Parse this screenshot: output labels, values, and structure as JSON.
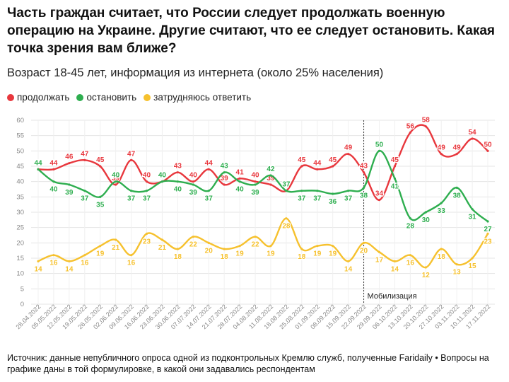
{
  "title": "Часть граждан считает, что России следует продолжать военную операцию на Украине. Другие считают, что ее следует остановить. Какая точка зрения вам ближе?",
  "subtitle": "Возраст 18-45 лет, информация из интернета (около 25% населения)",
  "source": "Источник: данные непубличного опроса одной из подконтрольных Кремлю служб, полученные Faridaily • Вопросы на графике даны в той формулировке, в какой они задавались респондентам",
  "chart_data": {
    "type": "line",
    "ylim": [
      0,
      60
    ],
    "yticks": [
      0,
      5,
      10,
      15,
      20,
      25,
      30,
      35,
      40,
      45,
      50,
      55,
      60
    ],
    "grid": true,
    "legend_placement": "top-left",
    "x": [
      "28.04.2022",
      "05.05.2022",
      "12.05.2022",
      "19.05.2022",
      "26.05.2022",
      "02.06.2022",
      "09.06.2022",
      "16.06.2022",
      "23.06.2022",
      "30.06.2022",
      "07.07.2022",
      "14.07.2022",
      "21.07.2022",
      "28.07.2022",
      "04.08.2022",
      "11.08.2022",
      "18.08.2022",
      "25.08.2022",
      "01.09.2022",
      "08.09.2022",
      "15.09.2022",
      "22.09.2022",
      "29.09.2022",
      "06.10.2022",
      "13.10.2022",
      "20.10.2022",
      "27.10.2022",
      "03.11.2022",
      "10.11.2022",
      "17.11.2022"
    ],
    "series": [
      {
        "name": "продолжать",
        "color": "#e8373d",
        "values": [
          44,
          44,
          46,
          47,
          45,
          39,
          47,
          40,
          40,
          43,
          40,
          44,
          39,
          41,
          40,
          39,
          37,
          45,
          44,
          45,
          49,
          43,
          34,
          45,
          56,
          58,
          49,
          49,
          54,
          50
        ]
      },
      {
        "name": "остановить",
        "color": "#2eae4f",
        "values": [
          44,
          40,
          39,
          37,
          35,
          40,
          37,
          37,
          40,
          40,
          39,
          37,
          43,
          40,
          39,
          42,
          37,
          37,
          37,
          36,
          37,
          38,
          50,
          41,
          28,
          30,
          33,
          38,
          31,
          27
        ]
      },
      {
        "name": "затрудняюсь ответить",
        "color": "#f6c12e",
        "values": [
          14,
          16,
          14,
          16,
          19,
          21,
          16,
          23,
          21,
          18,
          22,
          20,
          18,
          19,
          22,
          19,
          28,
          18,
          19,
          19,
          14,
          20,
          17,
          14,
          16,
          12,
          18,
          13,
          15,
          23
        ]
      }
    ],
    "annotations": [
      {
        "x": "22.09.2022",
        "text": "Мобилизация"
      }
    ]
  }
}
